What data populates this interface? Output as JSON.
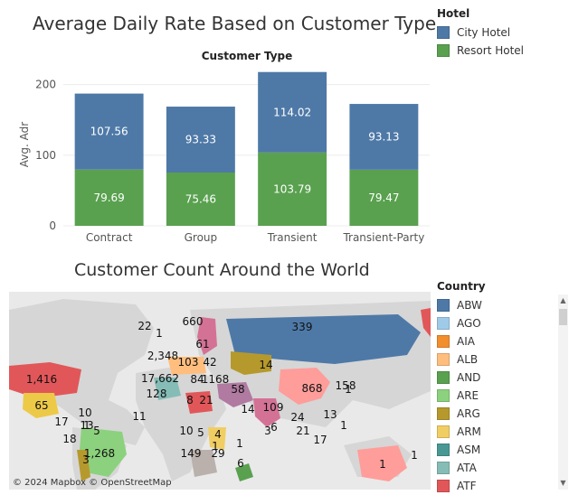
{
  "chart_title": "Average Daily Rate Based on Customer Type",
  "header_label": "Customer Type",
  "legend_hotel": {
    "title": "Hotel",
    "items": [
      {
        "label": "City Hotel",
        "color": "#4e79a7"
      },
      {
        "label": "Resort Hotel",
        "color": "#59a14f"
      }
    ]
  },
  "chart_data": {
    "type": "bar",
    "stacked": true,
    "categories": [
      "Contract",
      "Group",
      "Transient",
      "Transient-Party"
    ],
    "series": [
      {
        "name": "Resort Hotel",
        "values": [
          79.69,
          75.46,
          103.79,
          79.47
        ],
        "color": "#59a14f"
      },
      {
        "name": "City Hotel",
        "values": [
          107.56,
          93.33,
          114.02,
          93.13
        ],
        "color": "#4e79a7"
      }
    ],
    "ylabel": "Avg. Adr",
    "xlabel": "",
    "ylim": [
      0,
      220
    ],
    "yticks": [
      0,
      100,
      200
    ],
    "grid": true
  },
  "map_title": "Customer Count Around the World",
  "map_attribution": "© 2024 Mapbox © OpenStreetMap",
  "map_labels": [
    "339",
    "660",
    "22",
    "1",
    "61",
    "2,348",
    "103",
    "42",
    "14",
    "17,662",
    "84",
    "1,416",
    "128",
    "8",
    "21",
    "1168",
    "58",
    "868",
    "158",
    "1",
    "10",
    "65",
    "11",
    "1",
    "17",
    "13",
    "5",
    "109",
    "24",
    "13",
    "18",
    "10",
    "1,268",
    "14",
    "3",
    "6",
    "21",
    "1",
    "3",
    "5",
    "17",
    "149",
    "4",
    "1",
    "1",
    "29",
    "6",
    "1",
    "1"
  ],
  "legend_country": {
    "title": "Country",
    "items": [
      {
        "label": "ABW",
        "color": "#4e79a7"
      },
      {
        "label": "AGO",
        "color": "#a0cbe8"
      },
      {
        "label": "AIA",
        "color": "#f28e2b"
      },
      {
        "label": "ALB",
        "color": "#ffbe7d"
      },
      {
        "label": "AND",
        "color": "#59a14f"
      },
      {
        "label": "ARE",
        "color": "#8cd17d"
      },
      {
        "label": "ARG",
        "color": "#b6992d"
      },
      {
        "label": "ARM",
        "color": "#f1ce63"
      },
      {
        "label": "ASM",
        "color": "#499894"
      },
      {
        "label": "ATA",
        "color": "#86bcb6"
      },
      {
        "label": "ATF",
        "color": "#e15759"
      }
    ]
  }
}
